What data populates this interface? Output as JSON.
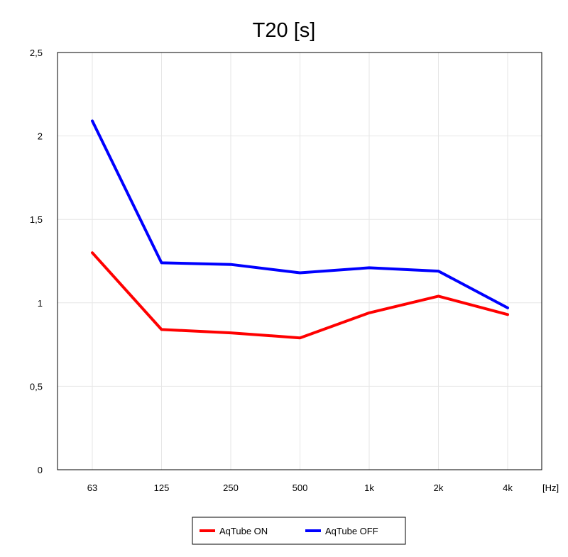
{
  "chart_data": {
    "type": "line",
    "title": "T20 [s]",
    "xlabel": "[Hz]",
    "ylabel": "",
    "categories": [
      "63",
      "125",
      "250",
      "500",
      "1k",
      "2k",
      "4k"
    ],
    "ylim": [
      0,
      2.5
    ],
    "yticks": [
      0,
      0.5,
      1,
      1.5,
      2,
      2.5
    ],
    "ytick_labels": [
      "0",
      "0,5",
      "1",
      "1,5",
      "2",
      "2,5"
    ],
    "grid": true,
    "legend_position": "bottom-center",
    "series": [
      {
        "name": "AqTube ON",
        "color": "#ff0000",
        "values": [
          1.3,
          0.84,
          0.82,
          0.79,
          0.94,
          1.04,
          0.93
        ]
      },
      {
        "name": "AqTube OFF",
        "color": "#0000ff",
        "values": [
          2.09,
          1.24,
          1.23,
          1.18,
          1.21,
          1.19,
          0.97
        ]
      }
    ]
  }
}
